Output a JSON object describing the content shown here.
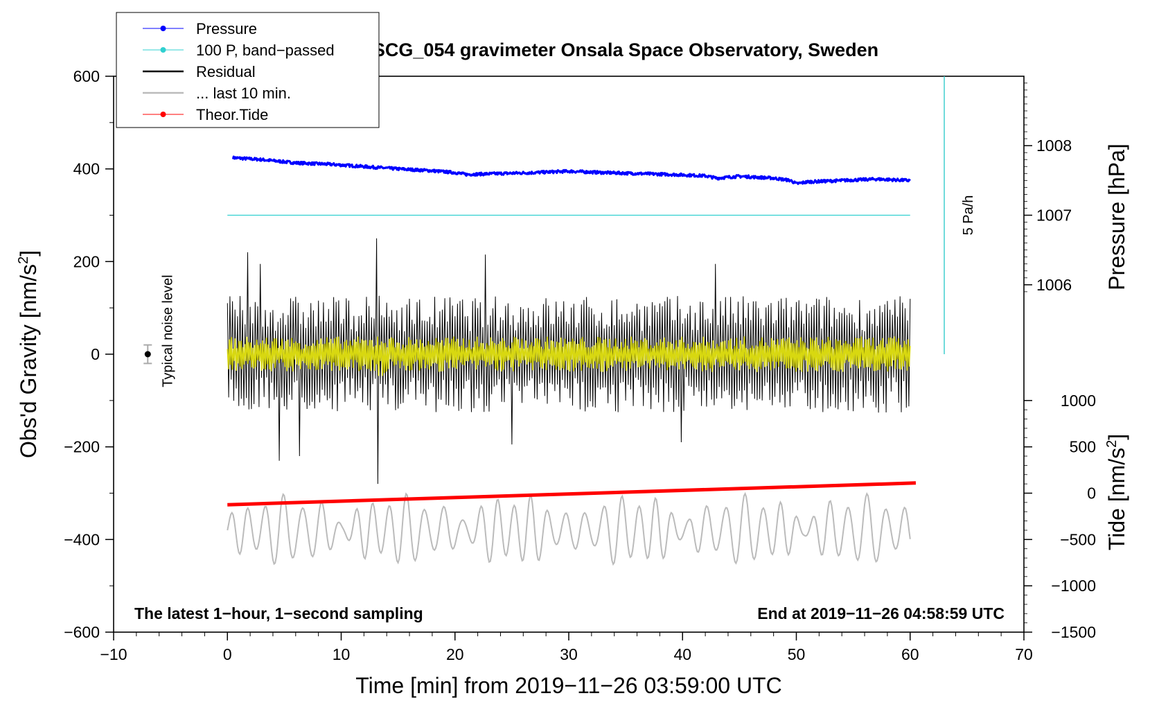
{
  "chart_data": {
    "type": "line",
    "title": "SCG_054 gravimeter Onsala Space Observatory, Sweden",
    "xlabel": "Time [min] from 2019−11−26 03:59:00 UTC",
    "ylabel_left": "Obs'd Gravity [nm/s",
    "ylabel_left_sup": "2",
    "ylabel_left_end": "]",
    "ylabel_pressure": "Pressure [hPa]",
    "ylabel_tide": "Tide [nm/s",
    "ylabel_tide_sup": "2",
    "ylabel_tide_end": "]",
    "xlim": [
      -10,
      70
    ],
    "ylim": [
      -600,
      600
    ],
    "x_ticks": [
      {
        "v": -10,
        "label": "−10"
      },
      {
        "v": 0,
        "label": "0"
      },
      {
        "v": 10,
        "label": "10"
      },
      {
        "v": 20,
        "label": "20"
      },
      {
        "v": 30,
        "label": "30"
      },
      {
        "v": 40,
        "label": "40"
      },
      {
        "v": 50,
        "label": "50"
      },
      {
        "v": 60,
        "label": "60"
      },
      {
        "v": 70,
        "label": "70"
      }
    ],
    "y_ticks": [
      {
        "v": 600,
        "label": "600"
      },
      {
        "v": 400,
        "label": "400"
      },
      {
        "v": 200,
        "label": "200"
      },
      {
        "v": 0,
        "label": "0"
      },
      {
        "v": -200,
        "label": "−200"
      },
      {
        "v": -400,
        "label": "−400"
      },
      {
        "v": -600,
        "label": "−600"
      }
    ],
    "pressure_axis": {
      "ticks": [
        {
          "v": 1008,
          "label": "1008"
        },
        {
          "v": 1007,
          "label": "1007"
        },
        {
          "v": 1006,
          "label": "1006"
        }
      ],
      "hpa_per_gravity_unit": 0.00666,
      "ref_hpa": 1007,
      "ref_gravity": 300
    },
    "tide_axis": {
      "ticks": [
        {
          "v": 1000,
          "label": "1000"
        },
        {
          "v": 500,
          "label": "500"
        },
        {
          "v": 0,
          "label": "0"
        },
        {
          "v": -500,
          "label": "−500"
        },
        {
          "v": -1000,
          "label": "−1000"
        },
        {
          "v": -1500,
          "label": "−1500"
        }
      ],
      "gravity_per_tide_unit": 0.2,
      "ref_tide": 0,
      "ref_gravity": -300
    },
    "legend": [
      {
        "label": "Pressure",
        "color": "#0000ff",
        "marker": true
      },
      {
        "label": "100 P, band−passed",
        "color": "#30d0d0",
        "marker": true
      },
      {
        "label": "Residual",
        "color": "#000000",
        "marker": false
      },
      {
        "label": "... last 10 min.",
        "color": "#bbbbbb",
        "marker": false
      },
      {
        "label": "Theor.Tide",
        "color": "#ff0000",
        "marker": true
      }
    ],
    "legend_position": "top-left",
    "series": [
      {
        "name": "Pressure",
        "color": "#0000ff",
        "x": [
          0.5,
          3,
          6,
          9,
          12,
          15,
          18,
          20,
          21,
          24,
          27,
          30,
          33,
          36,
          39,
          42,
          43,
          45,
          48,
          49.5,
          50,
          51,
          54,
          57,
          60
        ],
        "values": [
          424,
          420,
          413,
          410,
          405,
          400,
          396,
          392,
          388,
          390,
          392,
          395,
          392,
          390,
          388,
          385,
          380,
          384,
          380,
          375,
          368,
          372,
          375,
          378,
          375
        ]
      },
      {
        "name": "100 P, band−passed",
        "color": "#30d0d0",
        "x": [
          0,
          60
        ],
        "values": [
          300,
          300
        ]
      },
      {
        "name": "Residual",
        "color": "#000000",
        "x_start": 0,
        "x_end": 60,
        "count": 540,
        "peak_amplitude": 110,
        "extremes": [
          {
            "x": 13.2,
            "value": 250
          },
          {
            "x": 13.2,
            "value": -280
          },
          {
            "x": 1.8,
            "value": 220
          },
          {
            "x": 4.6,
            "value": -230
          },
          {
            "x": 6.4,
            "value": -220
          },
          {
            "x": 22.6,
            "value": 215
          },
          {
            "x": 42.8,
            "value": 195
          },
          {
            "x": 39.8,
            "value": -190
          },
          {
            "x": 3.0,
            "value": 195
          },
          {
            "x": 25.0,
            "value": -195
          }
        ]
      },
      {
        "name": "Residual (band, yellow)",
        "color": "#d8d810",
        "x_start": 0,
        "x_end": 60,
        "count": 700,
        "amplitude": 35
      },
      {
        "name": "... last 10 min.",
        "color": "#bbbbbb",
        "x_start": 0,
        "x_end": 60,
        "count": 600,
        "center": -380,
        "amplitude": 55
      },
      {
        "name": "Theor.Tide",
        "color": "#ff0000",
        "x": [
          0,
          60.5
        ],
        "values": [
          -325,
          -278
        ]
      }
    ],
    "noise_level": {
      "x": -7,
      "value": 0,
      "err": 20,
      "label": "Typical noise level"
    },
    "scale_bar": {
      "x": 63,
      "from": 0,
      "to": 600,
      "label": "5 Pa/h",
      "color": "#40d0d0"
    },
    "annotations": {
      "bottom_left": "The latest 1−hour, 1−second sampling",
      "bottom_right": "End at 2019−11−26 04:58:59 UTC"
    }
  }
}
